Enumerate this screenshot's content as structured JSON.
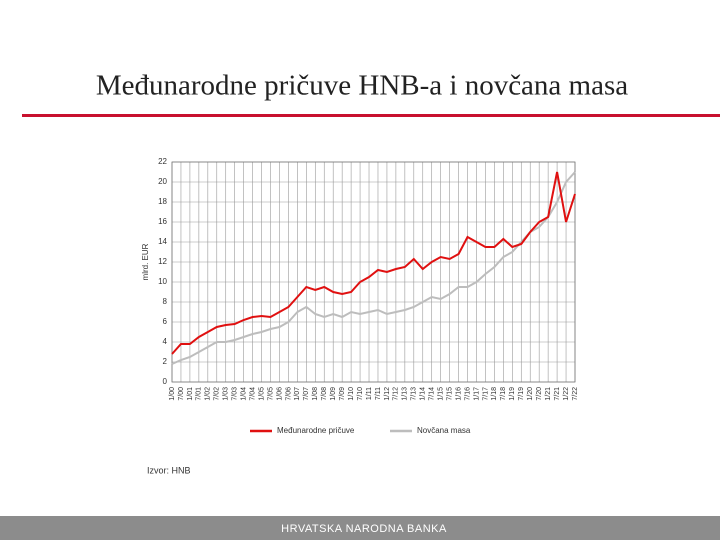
{
  "slide": {
    "title": "Međunarodne pričuve HNB-a i novčana masa",
    "source": "Izvor: HNB",
    "footer": "HRVATSKA NARODNA BANKA"
  },
  "chart_data": {
    "type": "line",
    "y_label": "mlrd. EUR",
    "categories": [
      "1/00",
      "7/00",
      "1/01",
      "7/01",
      "1/02",
      "7/02",
      "1/03",
      "7/03",
      "1/04",
      "7/04",
      "1/05",
      "7/05",
      "1/06",
      "7/06",
      "1/07",
      "7/07",
      "1/08",
      "7/08",
      "1/09",
      "7/09",
      "1/10",
      "7/10",
      "1/11",
      "7/11",
      "1/12",
      "7/12",
      "1/13",
      "7/13",
      "1/14",
      "7/14",
      "1/15",
      "7/15",
      "1/16",
      "7/16",
      "1/17",
      "7/17",
      "1/18",
      "7/18",
      "1/19",
      "7/19",
      "1/20",
      "7/20",
      "1/21",
      "7/21",
      "1/22",
      "7/22"
    ],
    "series": [
      {
        "name": "Međunarodne pričuve",
        "color": "#e01010",
        "values": [
          2.8,
          3.8,
          3.8,
          4.5,
          5.0,
          5.5,
          5.7,
          5.8,
          6.2,
          6.5,
          6.6,
          6.5,
          7.0,
          7.5,
          8.5,
          9.5,
          9.2,
          9.5,
          9.0,
          8.8,
          9.0,
          10.0,
          10.5,
          11.2,
          11.0,
          11.3,
          11.5,
          12.3,
          11.3,
          12.0,
          12.5,
          12.3,
          12.8,
          14.5,
          14.0,
          13.5,
          13.5,
          14.3,
          13.5,
          13.8,
          15.0,
          16.0,
          16.5,
          21.0,
          16.0,
          18.8
        ]
      },
      {
        "name": "Novčana masa",
        "color": "#bdbdbd",
        "values": [
          1.8,
          2.2,
          2.5,
          3.0,
          3.5,
          4.0,
          4.0,
          4.2,
          4.5,
          4.8,
          5.0,
          5.3,
          5.5,
          6.0,
          7.0,
          7.5,
          6.8,
          6.5,
          6.8,
          6.5,
          7.0,
          6.8,
          7.0,
          7.2,
          6.8,
          7.0,
          7.2,
          7.5,
          8.0,
          8.5,
          8.3,
          8.8,
          9.5,
          9.5,
          10.0,
          10.8,
          11.5,
          12.5,
          13.0,
          14.0,
          15.0,
          15.5,
          16.5,
          18.0,
          20.0,
          21.0
        ]
      }
    ],
    "ylim": [
      0,
      22
    ],
    "yticks": [
      0,
      2,
      4,
      6,
      8,
      10,
      12,
      14,
      16,
      18,
      20,
      22
    ],
    "grid": true
  }
}
